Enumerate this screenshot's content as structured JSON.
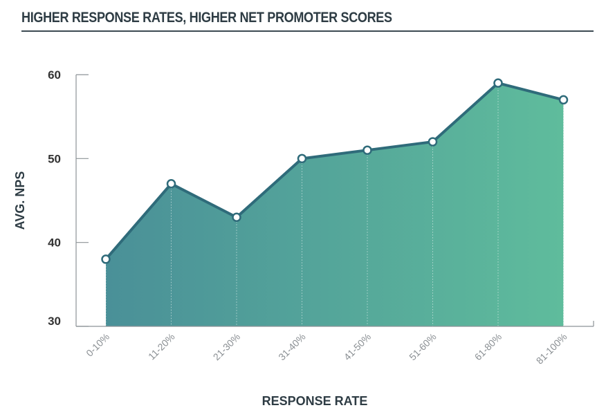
{
  "header": {
    "title": "HIGHER RESPONSE RATES, HIGHER NET PROMOTER SCORES"
  },
  "chart_data": {
    "type": "area",
    "title": "HIGHER RESPONSE RATES, HIGHER NET PROMOTER SCORES",
    "xlabel": "RESPONSE RATE",
    "ylabel": "AVG. NPS",
    "categories": [
      "0-10%",
      "11-20%",
      "21-30%",
      "31-40%",
      "41-50%",
      "51-60%",
      "61-80%",
      "81-100%"
    ],
    "values": [
      38,
      47,
      43,
      50,
      51,
      52,
      59,
      57
    ],
    "ylim": [
      30,
      60
    ],
    "yticks": [
      30,
      40,
      50,
      60
    ],
    "grid": false,
    "colors": {
      "fill_start": "#4a9098",
      "fill_end": "#5fbc9c",
      "line": "#2f6b7a",
      "marker_fill": "#ffffff",
      "axis": "#8c9296"
    }
  }
}
